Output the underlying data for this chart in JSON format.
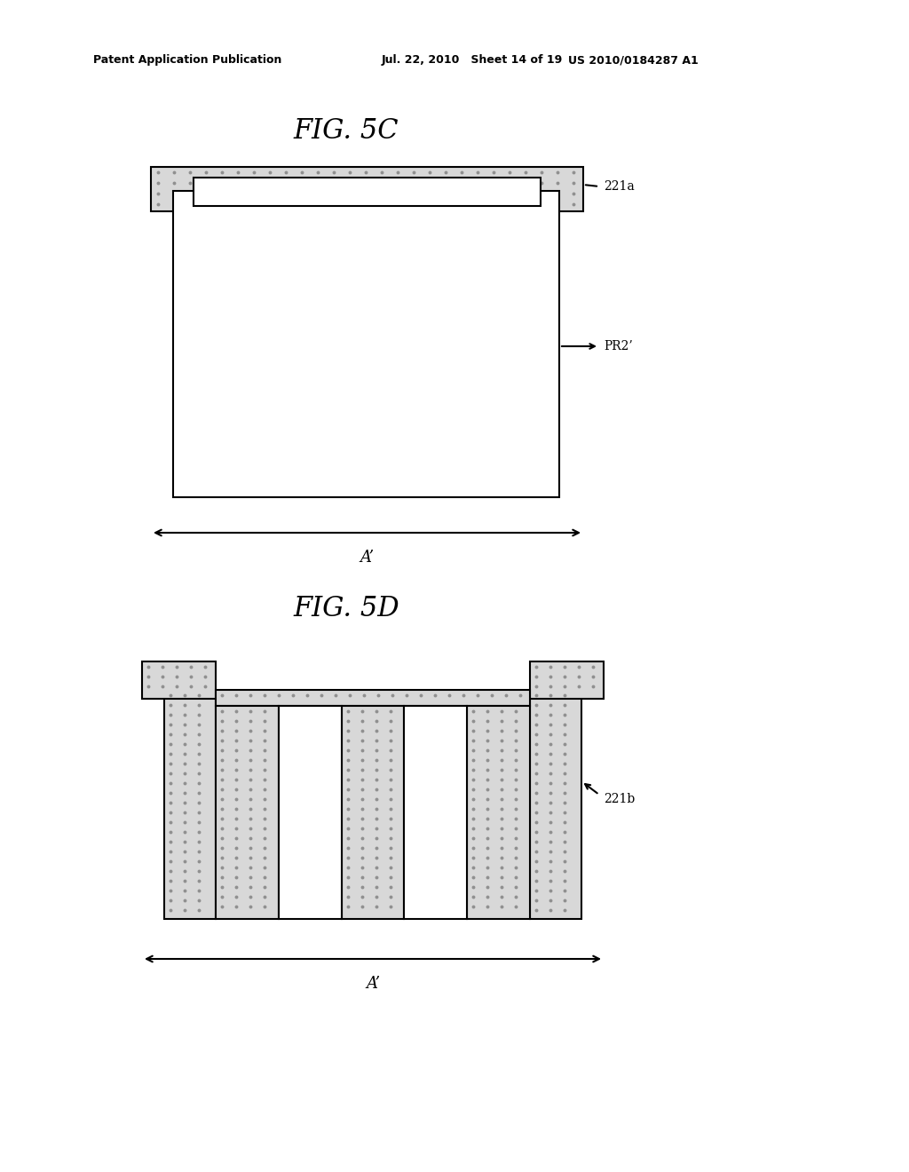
{
  "background_color": "#ffffff",
  "header_left": "Patent Application Publication",
  "header_mid": "Jul. 22, 2010   Sheet 14 of 19",
  "header_right": "US 2010/0184287 A1",
  "fig5c_title": "FIG. 5C",
  "fig5d_title": "FIG. 5D",
  "label_221a": "221a",
  "label_PR2": "PR2’",
  "label_221b": "221b",
  "label_A_prime": "A’",
  "dot_fill": "#d8d8d8",
  "dot_dark": "#909090",
  "line_color": "#000000",
  "line_width": 1.5
}
